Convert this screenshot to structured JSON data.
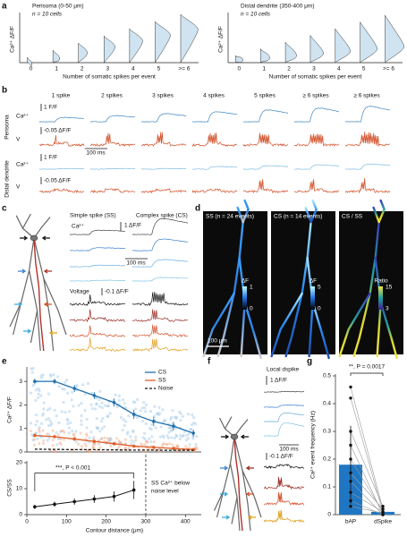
{
  "panels": {
    "a": {
      "label": "a",
      "left": {
        "title": "Perisoma (0-50 μm)",
        "n": "n = 10 cells",
        "ylabel": "Ca²⁺ ΔF/F",
        "categories": [
          "0",
          "1",
          "2",
          "3",
          "4",
          "5",
          ">= 6"
        ],
        "xlabel": "Number of somatic spikes per event"
      },
      "right": {
        "title": "Distal dendrite (350-400 μm)",
        "n": "n = 10 cells",
        "ylabel": "Ca²⁺ ΔF/F",
        "categories": [
          "0",
          "1",
          "2",
          "3",
          "4",
          "5",
          ">= 6"
        ],
        "xlabel": "Number of somatic spikes per event"
      }
    },
    "b": {
      "label": "b",
      "columns": [
        "1 spike",
        "2 spikes",
        "3 spikes",
        "4 spikes",
        "5 spikes",
        "≥ 6 spikes",
        "≥ 6 spikes"
      ],
      "rows": [
        "Perisoma",
        "Distal dendrite"
      ],
      "ca": "Ca²⁺",
      "v": "V",
      "ca_scale": "1 F/F",
      "v_scale": "-0.05 ΔF/F",
      "time_scale": "100 ms"
    },
    "c": {
      "label": "c",
      "ss": "Simple spike (SS)",
      "cs": "Complex spike (CS)",
      "ca": "Ca²⁺",
      "ca_scale": "1 ΔF/F",
      "time_scale": "100 ms",
      "voltage": "Voltage",
      "v_scale": "-0.1 ΔF/F"
    },
    "d": {
      "label": "d",
      "images": [
        {
          "title": "SS (n = 24 events)",
          "bar": "ΔF",
          "max": 1,
          "min": 0
        },
        {
          "title": "CS (n = 14 events)",
          "bar": "ΔF",
          "max": 5,
          "min": 0
        },
        {
          "title": "CS / SS",
          "bar": "Ratio",
          "max": 15,
          "min": 3
        }
      ],
      "scale": "100 μm"
    },
    "e": {
      "label": "e"
    },
    "f": {
      "label": "f",
      "title": "Local dspike",
      "ca_scale": "1 ΔF/F",
      "time_scale": "100 ms",
      "v_scale": "-0.1 ΔF/F"
    },
    "g": {
      "label": "g"
    }
  },
  "chart_data": [
    {
      "type": "line",
      "ylabel": "Ca²⁺ ΔF/F",
      "x": [
        20,
        70,
        120,
        170,
        220,
        270,
        320,
        370,
        420
      ],
      "xlim": [
        0,
        440
      ],
      "ylim": [
        0,
        3.5
      ],
      "yticks": [
        0,
        1,
        2,
        3
      ],
      "series": [
        {
          "name": "CS",
          "color": "#1f6fb0",
          "values": [
            3.0,
            3.0,
            2.7,
            2.4,
            2.1,
            1.6,
            1.3,
            1.1,
            0.8
          ],
          "errors": [
            0.12,
            0.12,
            0.15,
            0.15,
            0.18,
            0.2,
            0.2,
            0.18,
            0.15
          ]
        },
        {
          "name": "SS",
          "color": "#e0602a",
          "values": [
            0.7,
            0.65,
            0.55,
            0.45,
            0.35,
            0.25,
            0.2,
            0.15,
            0.1
          ],
          "errors": [
            0.05,
            0.05,
            0.05,
            0.05,
            0.05,
            0.04,
            0.04,
            0.03,
            0.03
          ]
        },
        {
          "name": "Noise",
          "color": "#111111",
          "dashed": true,
          "values": [
            0.12,
            0.11,
            0.1,
            0.1,
            0.09,
            0.08,
            0.08,
            0.07,
            0.07
          ]
        }
      ]
    },
    {
      "type": "line",
      "ylabel": "CS/SS",
      "xlabel": "Contour distance (μm)",
      "x": [
        20,
        70,
        120,
        170,
        220,
        270
      ],
      "values": [
        3,
        4,
        5,
        6,
        7,
        9.5
      ],
      "errors": [
        0.8,
        1,
        1.2,
        1.5,
        2,
        3.5
      ],
      "color": "#111111",
      "xlim": [
        0,
        440
      ],
      "xticks": [
        0,
        100,
        200,
        300,
        400
      ],
      "ylim": [
        0,
        20
      ],
      "yticks": [
        0,
        10,
        20
      ],
      "noise_limit": 300,
      "annotation": "***, P < 0.001",
      "note": [
        "SS Ca²⁺ below",
        "noise level"
      ]
    },
    {
      "type": "bar",
      "ylabel": "Ca²⁺ event frequency (Hz)",
      "categories": [
        "bAP",
        "dSpike"
      ],
      "values": [
        0.18,
        0.01
      ],
      "errors": [
        0.14,
        0.01
      ],
      "color": "#1f77c4",
      "ylim": [
        0,
        0.5
      ],
      "yticks": [
        0,
        0.1,
        0.2,
        0.3,
        0.4,
        0.5
      ],
      "annotation": "**, P = 0.0017",
      "cells": {
        "bAP": [
          0.46,
          0.42,
          0.3,
          0.25,
          0.2,
          0.15,
          0.12,
          0.08,
          0.05,
          0.03
        ],
        "dSpike": [
          0.02,
          0.01,
          0.03,
          0.0,
          0.01,
          0.02,
          0.0,
          0.01,
          0.0,
          0.005
        ]
      }
    }
  ]
}
